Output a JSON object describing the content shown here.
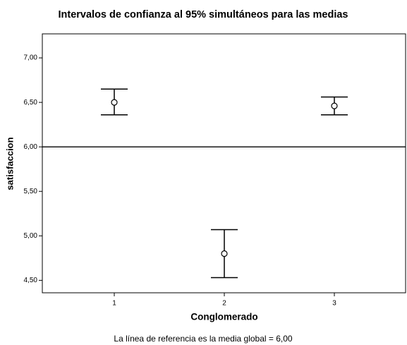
{
  "chart_data": {
    "type": "errorbar",
    "title": "Intervalos de confianza al 95% simultáneos para las medias",
    "xlabel": "Conglomerado",
    "ylabel": "satisfaccion",
    "categories": [
      "1",
      "2",
      "3"
    ],
    "values": [
      6.5,
      4.8,
      6.46
    ],
    "lower": [
      6.36,
      4.53,
      6.36
    ],
    "upper": [
      6.65,
      5.07,
      6.56
    ],
    "color": "#000000",
    "ylim": [
      4.36,
      7.27
    ],
    "yticks": [
      {
        "value": 4.5,
        "label": "4,50"
      },
      {
        "value": 5,
        "label": "5,00"
      },
      {
        "value": 5.5,
        "label": "5,50"
      },
      {
        "value": 6,
        "label": "6,00"
      },
      {
        "value": 6.5,
        "label": "6,50"
      },
      {
        "value": 7,
        "label": "7,00"
      }
    ],
    "reference_line": {
      "value": 6,
      "label": "La línea de referencia es la media global = 6,00"
    }
  }
}
